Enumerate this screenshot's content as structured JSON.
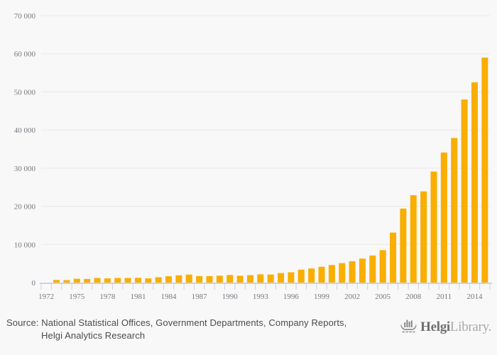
{
  "background_color": "#f8f8f8",
  "chart_data": {
    "type": "bar",
    "title": "",
    "xlabel": "",
    "ylabel": "",
    "bar_color": "#f9ae00",
    "gridline_color": "#e9e9e9",
    "axis_color": "#ccd2e2",
    "tick_label_color": "#76797e",
    "grid": "horizontal-only",
    "legend": "none",
    "ylim": [
      0,
      70000
    ],
    "y_tick_step": 10000,
    "y_tick_labels": [
      "0",
      "10 000",
      "20 000",
      "30 000",
      "40 000",
      "50 000",
      "60 000",
      "70 000"
    ],
    "x_tick_labels": [
      "1972",
      "1975",
      "1978",
      "1981",
      "1984",
      "1987",
      "1990",
      "1993",
      "1996",
      "1999",
      "2002",
      "2005",
      "2008",
      "2011",
      "2014"
    ],
    "categories": [
      1972,
      1973,
      1974,
      1975,
      1976,
      1977,
      1978,
      1979,
      1980,
      1981,
      1982,
      1983,
      1984,
      1985,
      1986,
      1987,
      1988,
      1989,
      1990,
      1991,
      1992,
      1993,
      1994,
      1995,
      1996,
      1997,
      1998,
      1999,
      2000,
      2001,
      2002,
      2003,
      2004,
      2005,
      2006,
      2007,
      2008,
      2009,
      2010,
      2011,
      2012,
      2013,
      2014,
      2015
    ],
    "values": [
      null,
      700,
      650,
      1000,
      950,
      1200,
      1100,
      1200,
      1200,
      1250,
      1100,
      1400,
      1650,
      1900,
      2100,
      1700,
      1700,
      1800,
      2000,
      1800,
      1950,
      2150,
      2100,
      2500,
      2700,
      3400,
      3700,
      4150,
      4600,
      5100,
      5600,
      6300,
      7100,
      8500,
      13100,
      19400,
      22900,
      23900,
      29100,
      34100,
      37900,
      48000,
      52500,
      59000
    ]
  },
  "footer": {
    "source_line1": "Source: National Statistical Offices, Government Departments, Company Reports,",
    "source_line2": "Helgi Analytics Research",
    "logo": {
      "brand_bold": "Helgi",
      "brand_light": "Library."
    }
  }
}
